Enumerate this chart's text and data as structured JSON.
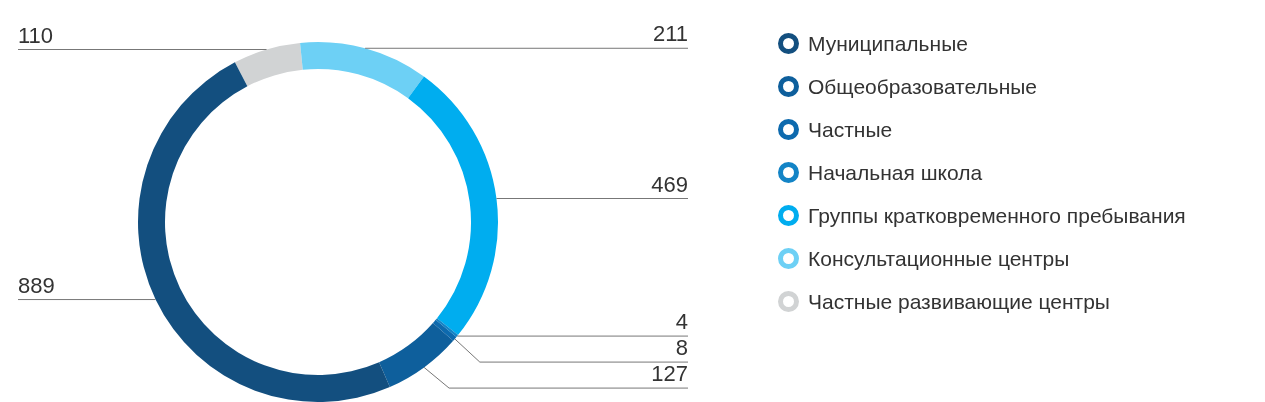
{
  "chart_data": {
    "type": "donut",
    "categories": [
      "Муниципальные",
      "Общеобразовательные",
      "Частные",
      "Начальная школа",
      "Группы кратковременного пребывания",
      "Консультационные центры",
      "Частные развивающие центры"
    ],
    "values": [
      889,
      127,
      8,
      4,
      469,
      211,
      110
    ],
    "colors": [
      "#134f7f",
      "#0e5f9c",
      "#0d6aae",
      "#1384c6",
      "#00adef",
      "#6dd0f5",
      "#d1d3d4"
    ],
    "data_labels": true,
    "legend": "right"
  }
}
